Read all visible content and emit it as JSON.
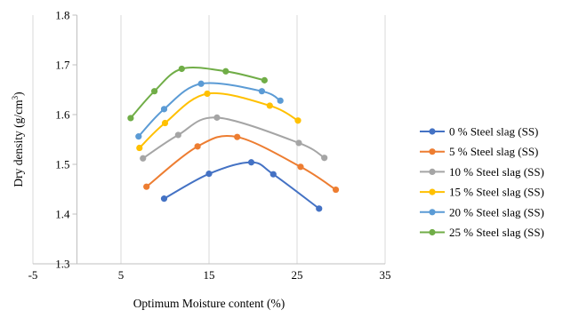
{
  "chart_data": {
    "type": "line",
    "title": "",
    "xlabel": "Optimum Moisture content (%)",
    "ylabel_prefix": "Dry density (g/cm",
    "ylabel_sup": "3",
    "ylabel_suffix": ")",
    "xlim": [
      -5,
      35
    ],
    "ylim": [
      1.3,
      1.8
    ],
    "x_ticks": [
      -5,
      5,
      15,
      25,
      35
    ],
    "x_tick_labels": [
      "-5",
      "5",
      "15",
      "25",
      "35"
    ],
    "y_ticks": [
      1.3,
      1.4,
      1.5,
      1.6,
      1.7,
      1.8
    ],
    "y_tick_labels": [
      "1.3",
      "1.4",
      "1.5",
      "1.6",
      "1.7",
      "1.8"
    ],
    "grid": "vertical",
    "legend_position": "right",
    "series": [
      {
        "name": "0 % Steel slag (SS)",
        "color": "#4472C4",
        "points": [
          [
            9.9,
            1.431
          ],
          [
            15.0,
            1.481
          ],
          [
            19.8,
            1.504
          ],
          [
            22.3,
            1.48
          ],
          [
            27.5,
            1.411
          ]
        ]
      },
      {
        "name": "5 % Steel slag (SS)",
        "color": "#ED7D31",
        "points": [
          [
            7.9,
            1.455
          ],
          [
            13.7,
            1.536
          ],
          [
            18.2,
            1.555
          ],
          [
            25.4,
            1.495
          ],
          [
            29.4,
            1.449
          ]
        ]
      },
      {
        "name": "10 % Steel slag (SS)",
        "color": "#A5A5A5",
        "points": [
          [
            7.5,
            1.512
          ],
          [
            11.5,
            1.559
          ],
          [
            15.9,
            1.594
          ],
          [
            25.2,
            1.543
          ],
          [
            28.1,
            1.513
          ]
        ]
      },
      {
        "name": "15 % Steel slag (SS)",
        "color": "#FFC000",
        "points": [
          [
            7.1,
            1.533
          ],
          [
            10.0,
            1.583
          ],
          [
            14.8,
            1.642
          ],
          [
            21.9,
            1.618
          ],
          [
            25.1,
            1.588
          ]
        ]
      },
      {
        "name": "20 % Steel slag (SS)",
        "color": "#5B9BD5",
        "points": [
          [
            7.0,
            1.556
          ],
          [
            9.9,
            1.611
          ],
          [
            14.1,
            1.662
          ],
          [
            21.0,
            1.647
          ],
          [
            23.1,
            1.628
          ]
        ]
      },
      {
        "name": "25 % Steel slag (SS)",
        "color": "#70AD47",
        "points": [
          [
            6.1,
            1.593
          ],
          [
            8.8,
            1.647
          ],
          [
            11.9,
            1.692
          ],
          [
            16.9,
            1.687
          ],
          [
            21.3,
            1.669
          ]
        ]
      }
    ]
  }
}
